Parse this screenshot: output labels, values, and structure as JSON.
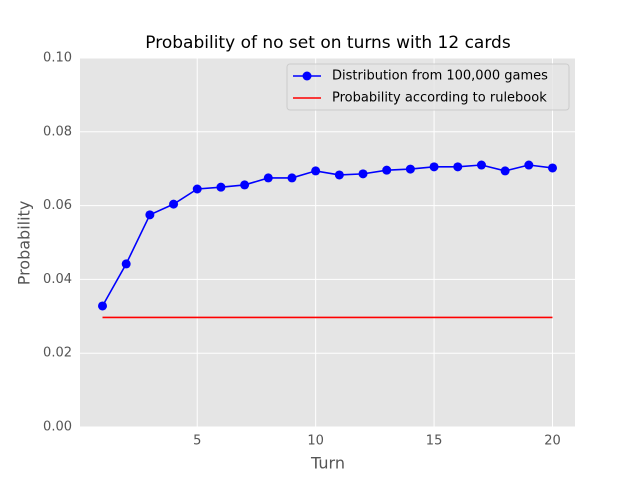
{
  "chart_data": {
    "type": "line",
    "title": "Probability of no set on turns with 12 cards",
    "xlabel": "Turn",
    "ylabel": "Probability",
    "xlim": [
      0.05,
      20.95
    ],
    "ylim": [
      0,
      0.1
    ],
    "xticks": [
      5,
      10,
      15,
      20
    ],
    "yticks": [
      {
        "value": 0,
        "label": "0.00"
      },
      {
        "value": 0.02,
        "label": "0.02"
      },
      {
        "value": 0.04,
        "label": "0.04"
      },
      {
        "value": 0.06,
        "label": "0.06"
      },
      {
        "value": 0.08,
        "label": "0.08"
      },
      {
        "value": 0.1,
        "label": "0.10"
      }
    ],
    "grid": true,
    "legend": "upper right",
    "series": [
      {
        "name": "Distribution from 100,000 games",
        "color": "#0000ff",
        "marker": "o",
        "x": [
          1,
          2,
          3,
          4,
          5,
          6,
          7,
          8,
          9,
          10,
          11,
          12,
          13,
          14,
          15,
          16,
          17,
          18,
          19,
          20
        ],
        "values": [
          0.0328,
          0.0442,
          0.0575,
          0.0604,
          0.0645,
          0.065,
          0.0656,
          0.0675,
          0.0675,
          0.0694,
          0.0683,
          0.0686,
          0.0696,
          0.0699,
          0.0705,
          0.0705,
          0.071,
          0.0694,
          0.071,
          0.0702
        ]
      },
      {
        "name": "Probability according to rulebook",
        "color": "#ff0000",
        "x": [
          1,
          20
        ],
        "values": [
          0.0297,
          0.0297
        ]
      }
    ]
  }
}
